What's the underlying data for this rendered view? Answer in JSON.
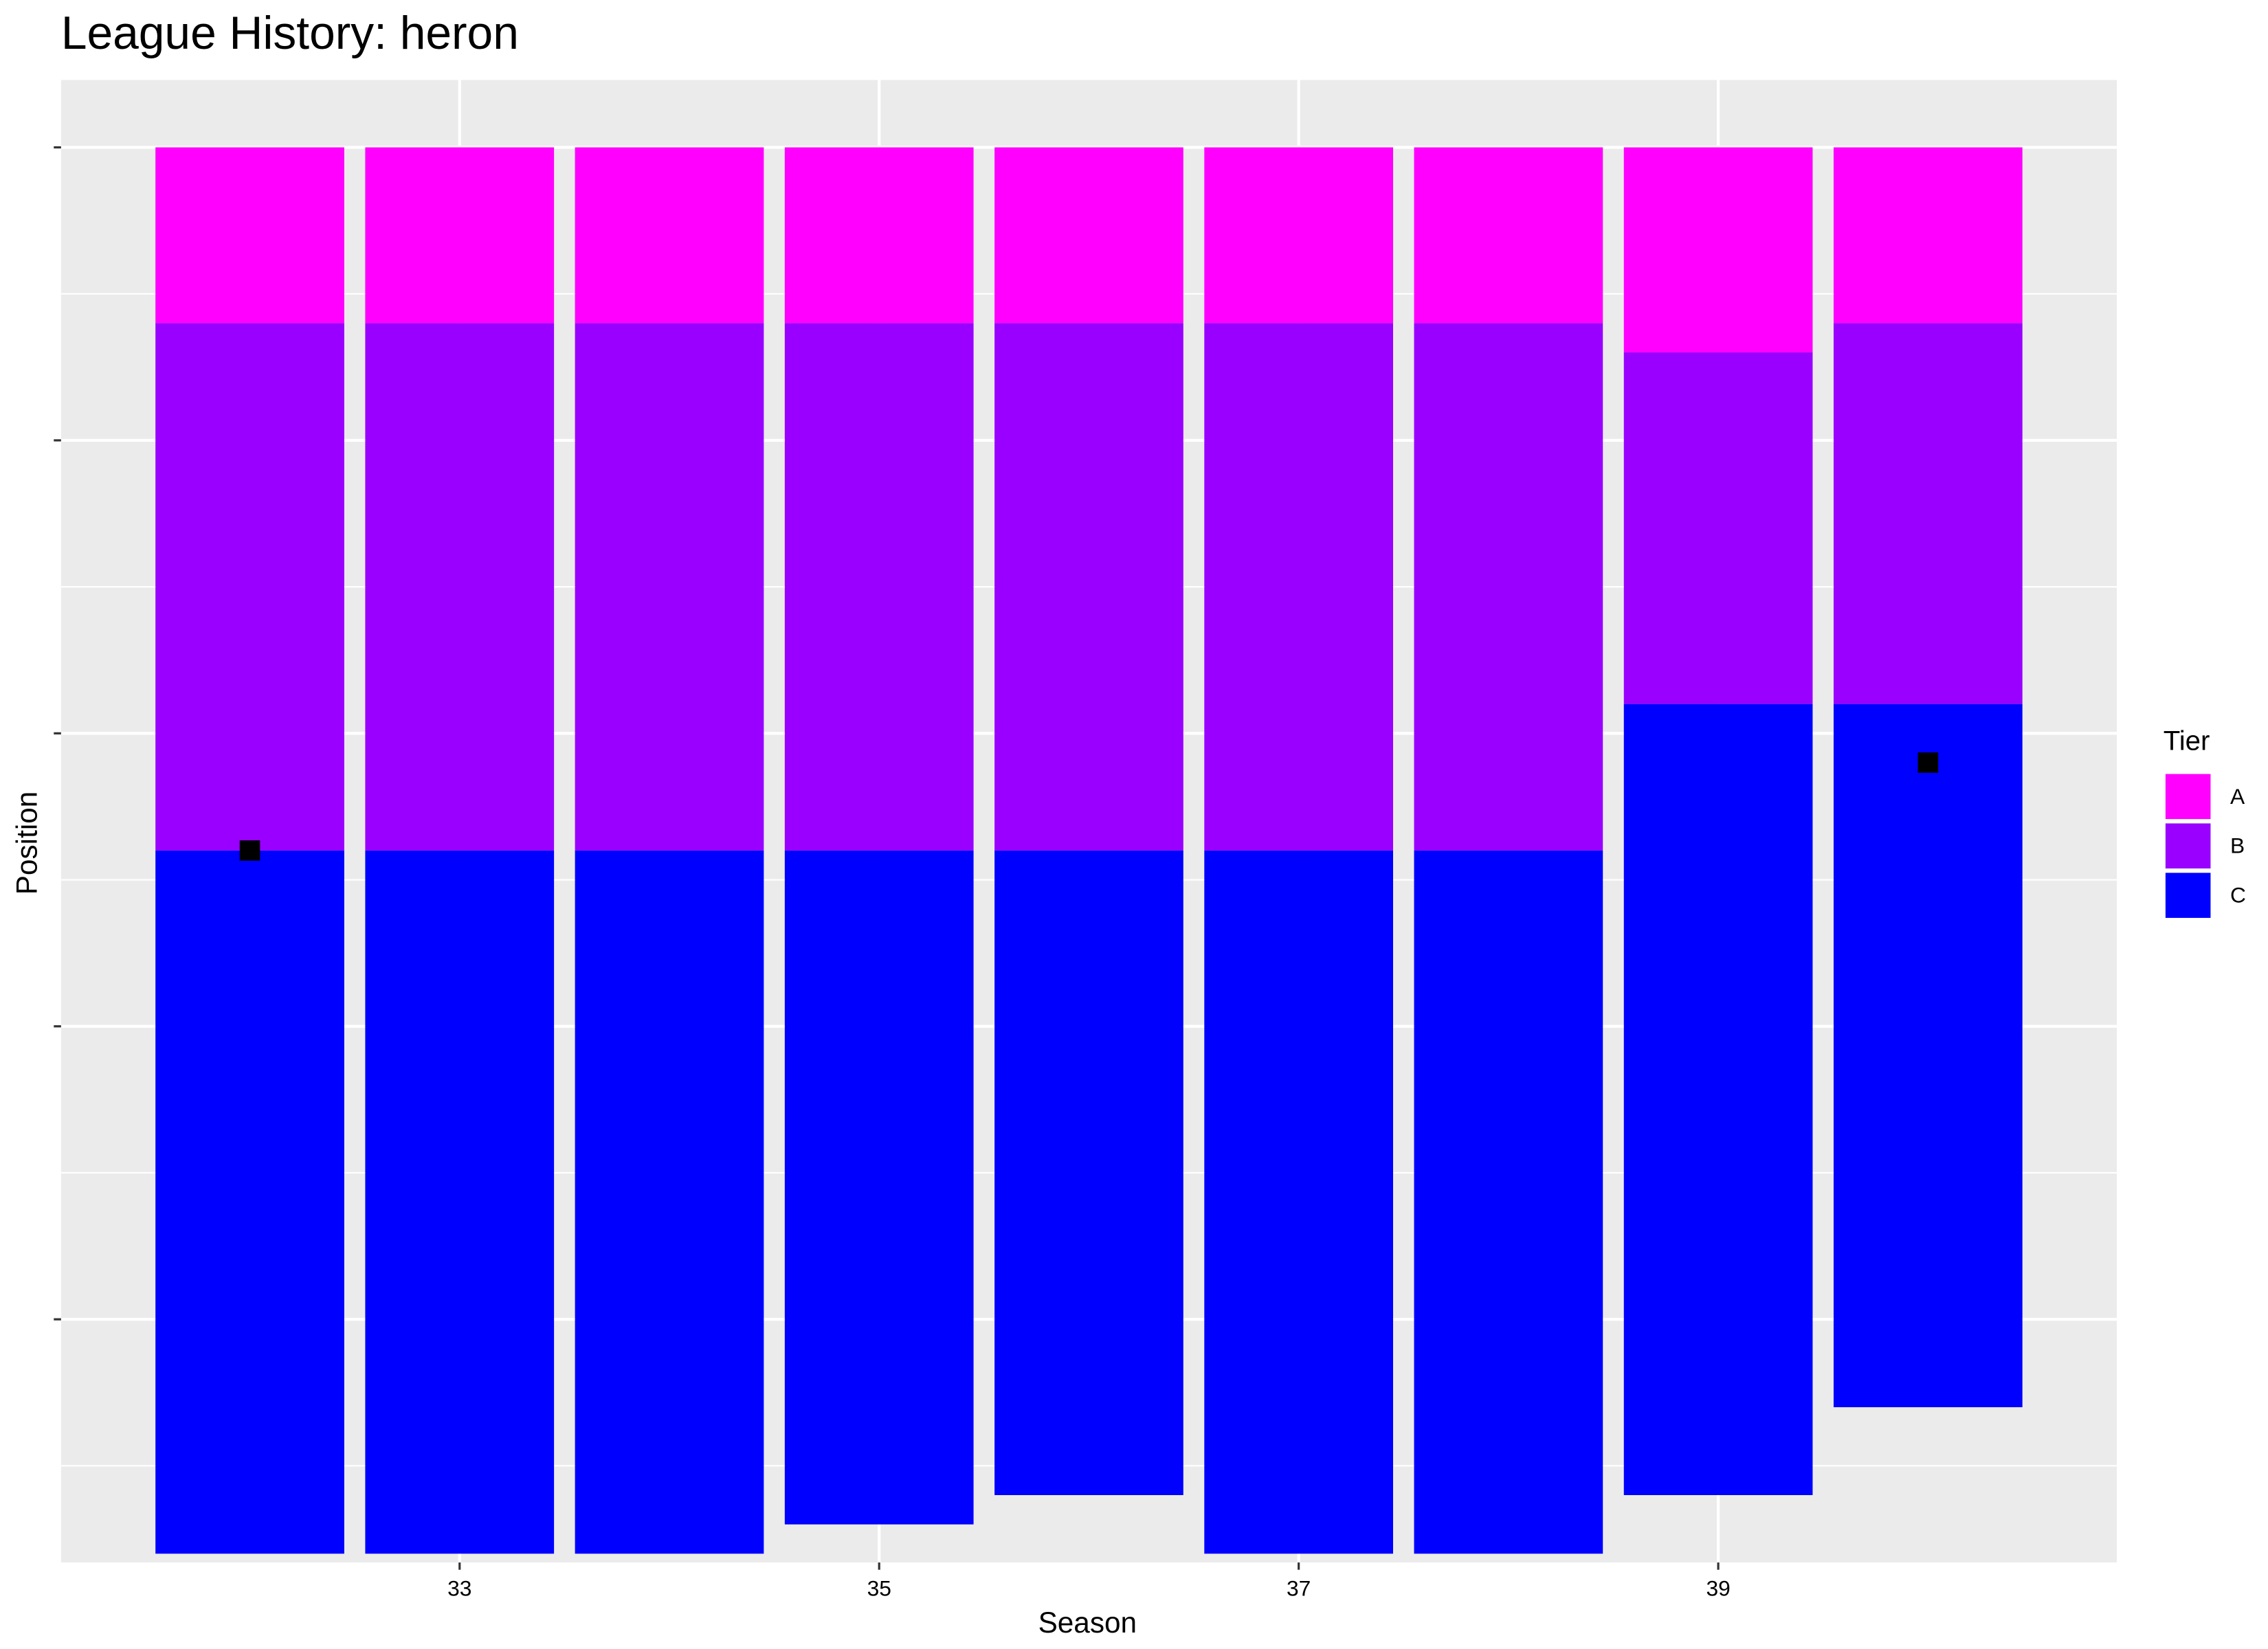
{
  "chart_data": {
    "type": "bar",
    "stacked": true,
    "title": "League History: heron",
    "x_label": "Season",
    "y_label": "Position",
    "x": [
      32,
      33,
      34,
      35,
      36,
      37,
      38,
      39,
      40
    ],
    "series": [
      {
        "name": "A",
        "color": "#ff00ff",
        "values": [
          6,
          6,
          6,
          6,
          6,
          6,
          6,
          7,
          6
        ]
      },
      {
        "name": "B",
        "color": "#9900ff",
        "values": [
          18,
          18,
          18,
          18,
          18,
          18,
          18,
          12,
          13
        ]
      },
      {
        "name": "C",
        "color": "#0000ff",
        "values": [
          24,
          24,
          24,
          23,
          22,
          24,
          24,
          27,
          24
        ]
      }
    ],
    "markers": {
      "color": "#000000",
      "values": [
        24,
        null,
        null,
        null,
        null,
        null,
        null,
        null,
        21
      ]
    },
    "bar_width": 0.9,
    "xlim": [
      31.1,
      40.9
    ],
    "xticks": [
      33,
      35,
      37,
      39
    ],
    "ylim": [
      -2.3,
      48.3
    ],
    "y_reverse": true,
    "yticks": [
      0,
      10,
      20,
      30,
      40
    ],
    "ytick_labels": false,
    "yminor": [
      5,
      15,
      25,
      35,
      45
    ],
    "grid": true,
    "legend_title": "Tier",
    "legend": "right"
  }
}
